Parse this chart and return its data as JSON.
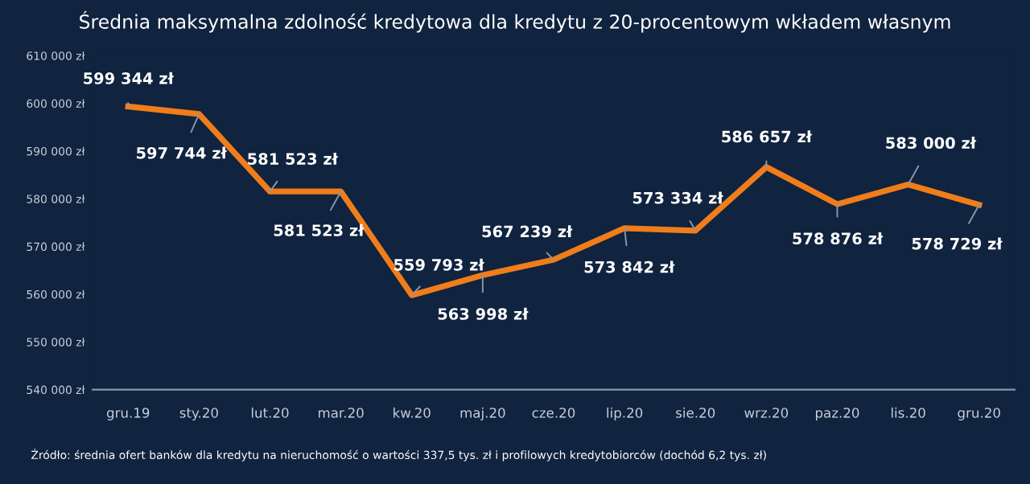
{
  "chart_data": {
    "type": "line",
    "title": "Średnia maksymalna zdolność kredytowa dla kredytu z 20-procentowym wkładem własnym",
    "categories": [
      "gru.19",
      "sty.20",
      "lut.20",
      "mar.20",
      "kw.20",
      "maj.20",
      "cze.20",
      "lip.20",
      "sie.20",
      "wrz.20",
      "paz.20",
      "lis.20",
      "gru.20"
    ],
    "series": [
      {
        "color": "#f07d1a",
        "values": [
          599344,
          597744,
          581523,
          581523,
          559793,
          563998,
          567239,
          573842,
          573334,
          586657,
          578876,
          583000,
          578729
        ],
        "value_labels": [
          "599 344 zł",
          "597 744 zł",
          "581 523 zł",
          "581 523 zł",
          "559 793 zł",
          "563 998 zł",
          "567 239 zł",
          "573 842 zł",
          "573 334 zł",
          "586 657 zł",
          "578 876 zł",
          "583 000 zł",
          "578 729 zł"
        ]
      }
    ],
    "ylim": [
      540000,
      610000
    ],
    "yticks": [
      {
        "value": 540000,
        "label": "540 000 zł"
      },
      {
        "value": 550000,
        "label": "550 000 zł"
      },
      {
        "value": 560000,
        "label": "560 000 zł"
      },
      {
        "value": 570000,
        "label": "570 000 zł"
      },
      {
        "value": 580000,
        "label": "580 000 zł"
      },
      {
        "value": 590000,
        "label": "590 000 zł"
      },
      {
        "value": 600000,
        "label": "600 000 zł"
      },
      {
        "value": 610000,
        "label": "610 000 zł"
      }
    ],
    "grid": false,
    "marker": "none",
    "line_style": "solid",
    "annotations": [
      "Źródło: średnia ofert banków dla kredytu na nieruchomość o wartości 337,5 tys. zł i profilowych kredytobiorców (dochód 6,2 tys. zł)"
    ]
  }
}
